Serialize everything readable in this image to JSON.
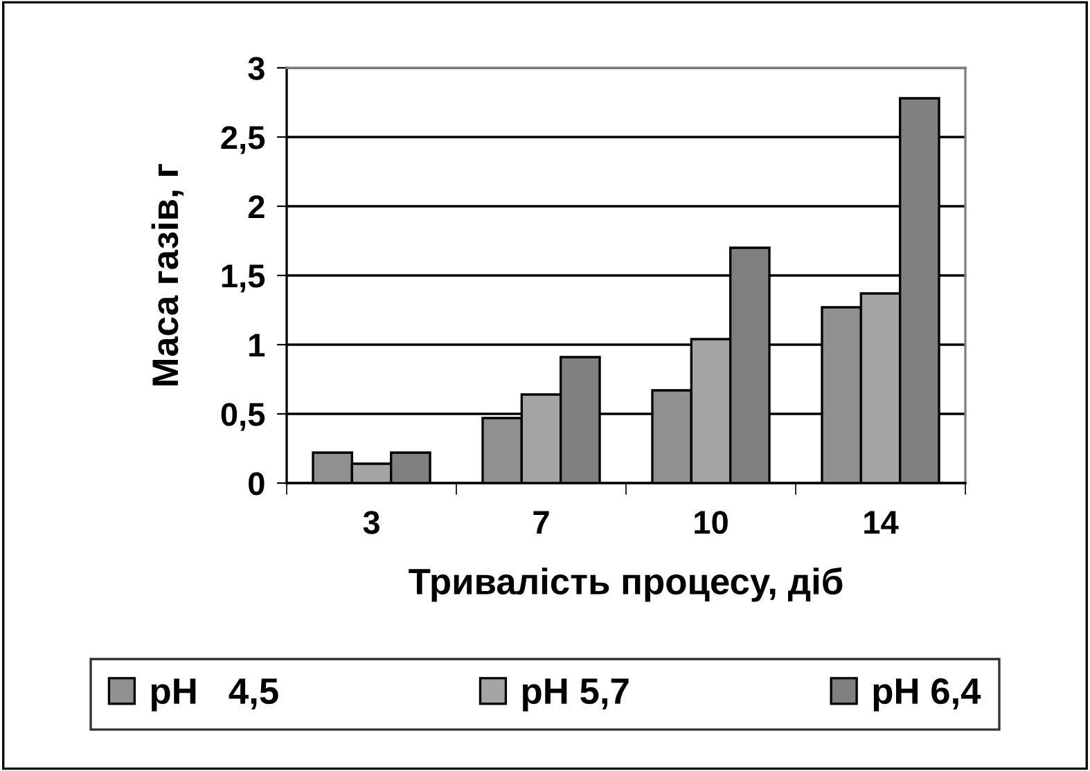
{
  "chart_data": {
    "type": "bar",
    "xlabel": "Тривалість процесу, діб",
    "ylabel": "Маса газів, г",
    "categories": [
      "3",
      "7",
      "10",
      "14"
    ],
    "series": [
      {
        "name": "pH   4,5",
        "color": "#909090",
        "values": [
          0.22,
          0.47,
          0.67,
          1.27
        ]
      },
      {
        "name": "pH 5,7",
        "color": "#a4a4a4",
        "values": [
          0.14,
          0.64,
          1.04,
          1.37
        ]
      },
      {
        "name": "pH 6,4",
        "color": "#808080",
        "values": [
          0.22,
          0.91,
          1.7,
          2.78
        ]
      }
    ],
    "ylim": [
      0,
      3
    ],
    "yticks": [
      0,
      {
        "value": 0.5,
        "label": "0,5"
      },
      1,
      {
        "value": 1.5,
        "label": "1,5"
      },
      2,
      {
        "value": 2.5,
        "label": "2,5"
      },
      3
    ],
    "grid": "y",
    "legend": "bottom"
  }
}
